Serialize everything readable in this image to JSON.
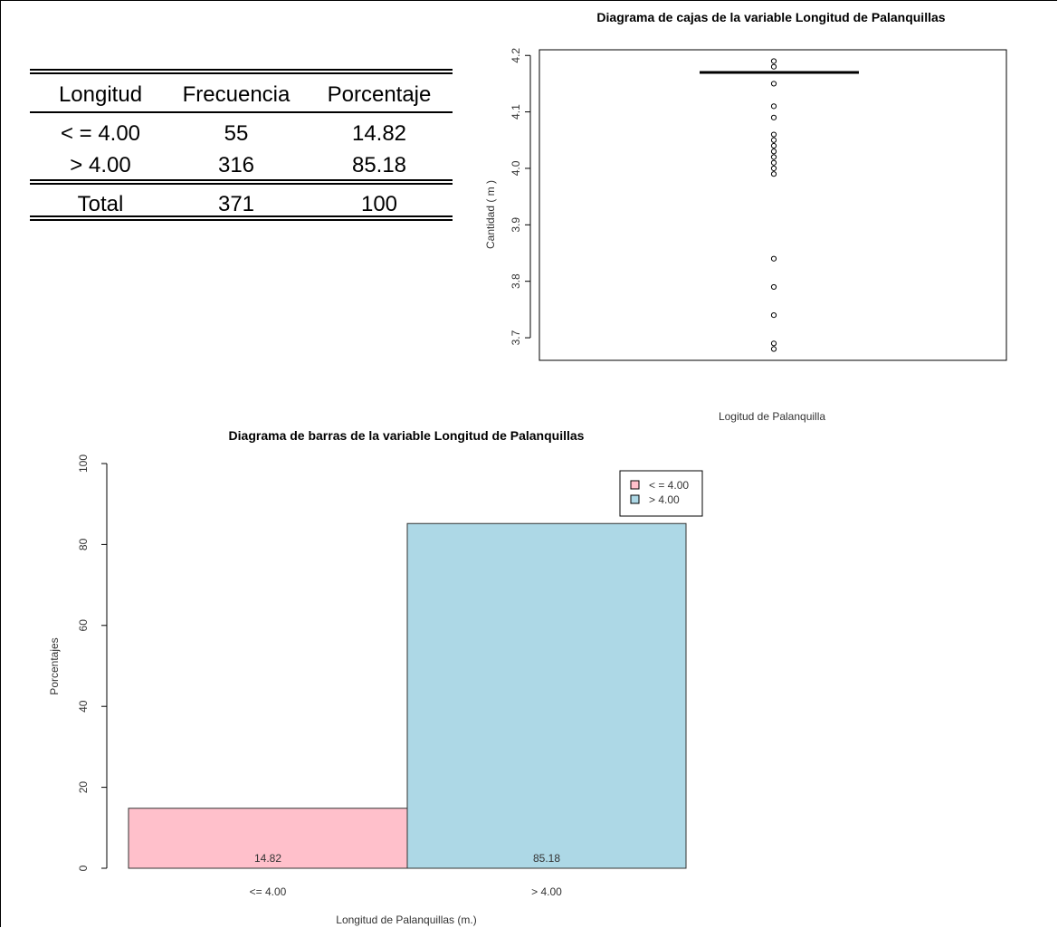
{
  "table": {
    "headers": [
      "Longitud",
      "Frecuencia",
      "Porcentaje"
    ],
    "rows": [
      [
        "< = 4.00",
        "55",
        "14.82"
      ],
      [
        "> 4.00",
        "316",
        "85.18"
      ]
    ],
    "total": [
      "Total",
      "371",
      "100"
    ]
  },
  "chart_data": [
    {
      "type": "box",
      "title": "Diagrama de cajas de la variable Longitud de Palanquillas",
      "xlabel": "Logitud de Palanquilla",
      "ylabel": "Cantidad   ( m )",
      "ylim": [
        3.66,
        4.21
      ],
      "yticks": [
        "3.7",
        "3.8",
        "3.9",
        "4.0",
        "4.1",
        "4.2"
      ],
      "median": 4.17,
      "outliers": [
        4.19,
        4.18,
        4.15,
        4.11,
        4.09,
        4.06,
        4.05,
        4.04,
        4.03,
        4.02,
        4.01,
        4.0,
        3.99,
        3.84,
        3.79,
        3.74,
        3.69,
        3.68
      ]
    },
    {
      "type": "bar",
      "title": "Diagrama de barras de la variable Longitud de Palanquillas",
      "xlabel": "Longitud de Palanquillas (m.)",
      "ylabel": "Porcentajes",
      "ylim": [
        0,
        100
      ],
      "yticks": [
        "0",
        "20",
        "40",
        "60",
        "80",
        "100"
      ],
      "categories": [
        "<= 4.00",
        "> 4.00"
      ],
      "values": [
        14.82,
        85.18
      ],
      "value_labels": [
        "14.82",
        "85.18"
      ],
      "colors": [
        "#ffc0cb",
        "#add8e6"
      ],
      "legend": {
        "position": "top-right",
        "entries": [
          "< = 4.00",
          "> 4.00"
        ]
      }
    }
  ]
}
